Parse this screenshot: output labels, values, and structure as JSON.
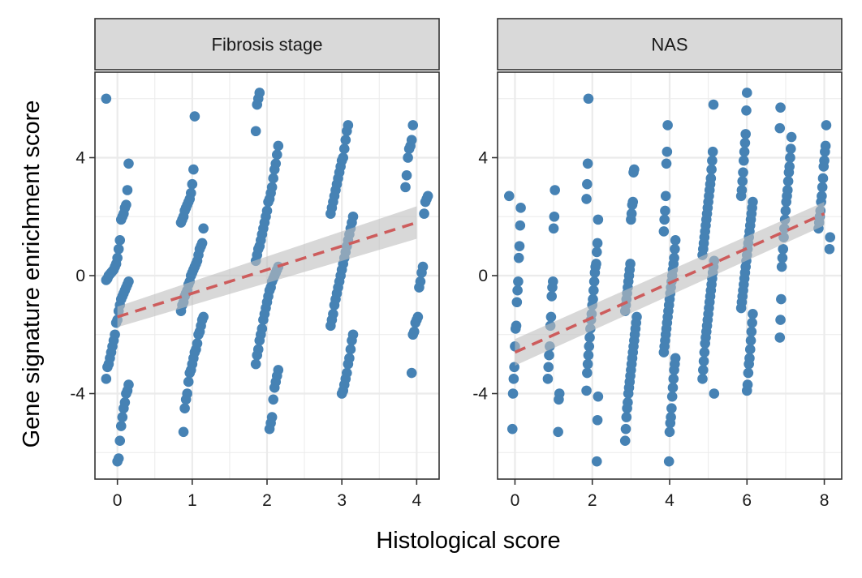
{
  "figure": {
    "ylabel": "Gene signature enrichment score",
    "xlabel": "Histological score",
    "point_color": "#4682B4",
    "trend_color": "#CD5C5C",
    "ribbon_color": "#BEBEBE",
    "strip_fill": "#D9D9D9",
    "grid_color": "#EBEBEB"
  },
  "chart_data": [
    {
      "type": "scatter",
      "title": "Fibrosis stage",
      "xlabel": "Histological score",
      "ylabel": "Gene signature enrichment score",
      "xlim": [
        -0.3,
        4.3
      ],
      "ylim": [
        -6.9,
        6.9
      ],
      "xticks": [
        0,
        1,
        2,
        3,
        4
      ],
      "yticks": [
        -4,
        0,
        4
      ],
      "grid": true,
      "categories": [
        0,
        1,
        2,
        3,
        4
      ],
      "points": {
        "0": [
          6.0,
          3.8,
          2.9,
          2.4,
          2.3,
          2.1,
          2.0,
          1.9,
          1.2,
          0.9,
          0.6,
          0.4,
          0.3,
          0.2,
          0.15,
          0.1,
          0.05,
          0.0,
          -0.1,
          -0.15,
          -0.2,
          -0.3,
          -0.4,
          -0.5,
          -0.6,
          -0.7,
          -0.8,
          -1.0,
          -1.2,
          -1.5,
          -1.6,
          -2.0,
          -2.2,
          -2.4,
          -2.6,
          -2.8,
          -3.0,
          -3.1,
          -3.5,
          -3.7,
          -3.9,
          -4.0,
          -4.3,
          -4.5,
          -4.8,
          -5.1,
          -5.6,
          -6.2,
          -6.3
        ],
        "1": [
          5.4,
          3.6,
          3.1,
          2.8,
          2.6,
          2.5,
          2.4,
          2.3,
          2.2,
          2.0,
          1.9,
          1.8,
          1.6,
          1.1,
          1.0,
          0.9,
          0.7,
          0.5,
          0.4,
          0.3,
          0.2,
          0.1,
          0.0,
          -0.2,
          -0.3,
          -0.5,
          -0.6,
          -0.7,
          -0.9,
          -1.0,
          -1.2,
          -1.4,
          -1.5,
          -1.7,
          -1.9,
          -2.0,
          -2.3,
          -2.5,
          -2.6,
          -2.8,
          -3.0,
          -3.2,
          -3.3,
          -3.6,
          -4.0,
          -4.2,
          -4.5,
          -5.3
        ],
        "2": [
          6.2,
          6.0,
          5.8,
          4.9,
          4.4,
          4.1,
          3.8,
          3.6,
          3.3,
          3.0,
          2.8,
          2.6,
          2.5,
          2.2,
          2.0,
          1.8,
          1.6,
          1.4,
          1.2,
          1.0,
          0.9,
          0.7,
          0.5,
          0.3,
          0.2,
          0.1,
          0.0,
          -0.1,
          -0.2,
          -0.4,
          -0.5,
          -0.7,
          -0.9,
          -1.1,
          -1.3,
          -1.5,
          -1.8,
          -2.0,
          -2.2,
          -2.5,
          -2.7,
          -3.0,
          -3.2,
          -3.4,
          -3.6,
          -3.8,
          -4.2,
          -4.8,
          -5.0,
          -5.2
        ],
        "3": [
          5.1,
          4.9,
          4.6,
          4.3,
          4.0,
          3.9,
          3.7,
          3.5,
          3.3,
          3.1,
          2.9,
          2.7,
          2.5,
          2.3,
          2.1,
          2.0,
          1.8,
          1.6,
          1.4,
          1.2,
          1.0,
          0.8,
          0.6,
          0.4,
          0.2,
          0.0,
          -0.2,
          -0.4,
          -0.6,
          -0.8,
          -1.0,
          -1.3,
          -1.5,
          -1.7,
          -2.0,
          -2.2,
          -2.5,
          -2.8,
          -3.0,
          -3.3,
          -3.5,
          -3.7,
          -3.9,
          -4.0
        ],
        "4": [
          5.1,
          4.6,
          4.4,
          4.3,
          4.0,
          3.4,
          3.0,
          2.7,
          2.6,
          2.5,
          2.1,
          0.3,
          0.1,
          -0.2,
          -0.4,
          -1.4,
          -1.5,
          -1.6,
          -1.9,
          -2.0,
          -3.3
        ]
      },
      "trend": {
        "x": [
          0,
          4
        ],
        "y": [
          -1.4,
          1.8
        ],
        "ci_low": [
          -1.75,
          1.25
        ],
        "ci_high": [
          -1.05,
          2.35
        ]
      }
    },
    {
      "type": "scatter",
      "title": "NAS",
      "xlabel": "Histological score",
      "ylabel": "Gene signature enrichment score",
      "xlim": [
        -0.45,
        8.45
      ],
      "ylim": [
        -6.9,
        6.9
      ],
      "xticks": [
        0,
        2,
        4,
        6,
        8
      ],
      "yticks": [
        -4,
        0,
        4
      ],
      "grid": true,
      "categories": [
        0,
        1,
        2,
        3,
        4,
        5,
        6,
        7,
        8
      ],
      "points": {
        "0": [
          2.7,
          2.3,
          1.7,
          1.0,
          0.6,
          -0.2,
          -0.5,
          -0.9,
          -1.7,
          -1.8,
          -2.4,
          -3.1,
          -3.5,
          -4.0,
          -5.2
        ],
        "1": [
          2.9,
          2.0,
          1.6,
          -0.2,
          -0.4,
          -0.7,
          -1.4,
          -1.7,
          -2.4,
          -2.7,
          -3.1,
          -3.5,
          -4.0,
          -4.2,
          -5.3
        ],
        "2": [
          6.0,
          3.8,
          3.1,
          2.6,
          1.9,
          1.1,
          0.8,
          0.4,
          0.3,
          0.1,
          -0.2,
          -0.5,
          -0.8,
          -1.0,
          -1.3,
          -1.5,
          -1.8,
          -2.1,
          -2.4,
          -2.7,
          -3.0,
          -3.3,
          -3.9,
          -4.1,
          -4.9,
          -6.3
        ],
        "3": [
          3.6,
          3.5,
          2.5,
          2.4,
          2.1,
          1.9,
          0.4,
          0.2,
          0.0,
          -0.2,
          -0.4,
          -0.6,
          -0.8,
          -1.0,
          -1.2,
          -1.4,
          -1.6,
          -1.8,
          -2.0,
          -2.2,
          -2.4,
          -2.6,
          -2.8,
          -3.0,
          -3.2,
          -3.4,
          -3.6,
          -3.8,
          -4.0,
          -4.3,
          -4.5,
          -4.8,
          -5.2,
          -5.6
        ],
        "4": [
          5.1,
          4.2,
          3.8,
          2.7,
          2.2,
          1.9,
          1.5,
          1.2,
          0.9,
          0.6,
          0.4,
          0.2,
          0.0,
          -0.2,
          -0.4,
          -0.6,
          -0.8,
          -1.0,
          -1.2,
          -1.4,
          -1.6,
          -1.8,
          -2.0,
          -2.2,
          -2.4,
          -2.6,
          -2.8,
          -3.0,
          -3.2,
          -3.5,
          -3.8,
          -4.1,
          -4.5,
          -4.8,
          -5.0,
          -5.3,
          -6.3
        ],
        "5": [
          5.8,
          4.2,
          3.9,
          3.6,
          3.3,
          3.1,
          2.9,
          2.7,
          2.5,
          2.3,
          2.1,
          1.9,
          1.7,
          1.5,
          1.3,
          1.1,
          0.9,
          0.7,
          0.5,
          0.3,
          0.1,
          -0.1,
          -0.3,
          -0.5,
          -0.7,
          -0.9,
          -1.1,
          -1.3,
          -1.5,
          -1.7,
          -1.9,
          -2.1,
          -2.3,
          -2.6,
          -2.9,
          -3.2,
          -3.5,
          -4.0
        ],
        "6": [
          6.2,
          5.6,
          4.8,
          4.5,
          4.2,
          3.9,
          3.5,
          3.2,
          2.9,
          2.7,
          2.5,
          2.3,
          2.1,
          1.9,
          1.7,
          1.5,
          1.3,
          1.1,
          0.9,
          0.7,
          0.5,
          0.3,
          0.1,
          -0.1,
          -0.3,
          -0.5,
          -0.7,
          -0.9,
          -1.1,
          -1.3,
          -1.6,
          -1.9,
          -2.2,
          -2.5,
          -2.8,
          -3.0,
          -3.3,
          -3.7,
          -3.9
        ],
        "7": [
          5.7,
          5.0,
          4.7,
          4.3,
          4.0,
          3.7,
          3.5,
          3.2,
          2.9,
          2.7,
          2.5,
          2.2,
          1.9,
          1.6,
          1.3,
          0.9,
          0.6,
          0.3,
          -0.8,
          -1.5,
          -2.1
        ],
        "8": [
          5.1,
          4.4,
          4.2,
          3.9,
          3.7,
          3.3,
          3.0,
          2.7,
          2.5,
          2.2,
          2.0,
          1.8,
          1.6,
          1.3,
          0.9
        ]
      },
      "trend": {
        "x": [
          0,
          8
        ],
        "y": [
          -2.6,
          2.1
        ],
        "ci_low": [
          -3.05,
          1.7
        ],
        "ci_high": [
          -2.15,
          2.5
        ]
      }
    }
  ]
}
